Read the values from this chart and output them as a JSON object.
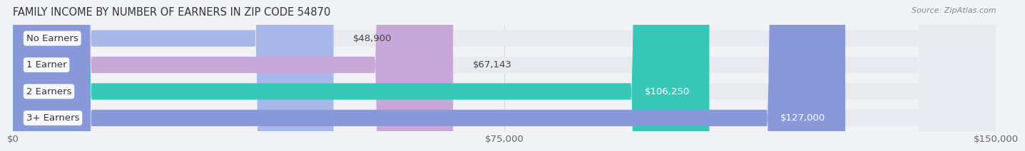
{
  "title": "FAMILY INCOME BY NUMBER OF EARNERS IN ZIP CODE 54870",
  "source": "Source: ZipAtlas.com",
  "categories": [
    "No Earners",
    "1 Earner",
    "2 Earners",
    "3+ Earners"
  ],
  "values": [
    48900,
    67143,
    106250,
    127000
  ],
  "bar_colors": [
    "#a8b8e8",
    "#c8a8d8",
    "#38c8b8",
    "#8898d8"
  ],
  "bar_bg_color": "#e8eaf0",
  "label_colors": [
    "#333333",
    "#333333",
    "#ffffff",
    "#ffffff"
  ],
  "xlim": [
    0,
    150000
  ],
  "xtick_values": [
    0,
    75000,
    150000
  ],
  "xtick_labels": [
    "$0",
    "$75,000",
    "$150,000"
  ],
  "background_color": "#f0f2f5",
  "bar_height": 0.62,
  "title_fontsize": 10.5,
  "label_fontsize": 9.5,
  "value_fontsize": 9.5,
  "tick_fontsize": 9.5
}
